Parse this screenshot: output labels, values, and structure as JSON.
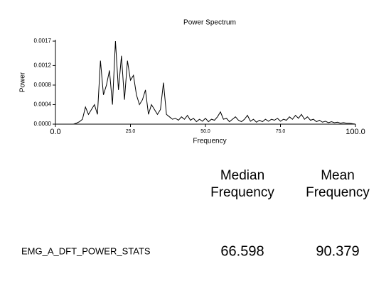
{
  "chart_data": {
    "type": "line",
    "title": "Power Spectrum",
    "xlabel": "Frequency",
    "ylabel": "Power",
    "x": [
      0,
      1,
      2,
      3,
      4,
      5,
      6,
      7,
      8,
      9,
      10,
      11,
      12,
      13,
      14,
      15,
      16,
      17,
      18,
      19,
      20,
      21,
      22,
      23,
      24,
      25,
      26,
      27,
      28,
      29,
      30,
      31,
      32,
      33,
      34,
      35,
      36,
      37,
      38,
      39,
      40,
      41,
      42,
      43,
      44,
      45,
      46,
      47,
      48,
      49,
      50,
      51,
      52,
      53,
      54,
      55,
      56,
      57,
      58,
      59,
      60,
      61,
      62,
      63,
      64,
      65,
      66,
      67,
      68,
      69,
      70,
      71,
      72,
      73,
      74,
      75,
      76,
      77,
      78,
      79,
      80,
      81,
      82,
      83,
      84,
      85,
      86,
      87,
      88,
      89,
      90,
      91,
      92,
      93,
      94,
      95,
      96,
      97,
      98,
      99,
      100
    ],
    "series": [
      {
        "color": "#000000",
        "values": [
          0,
          0,
          0,
          0,
          0,
          0,
          0,
          2e-05,
          5e-05,
          0.0001,
          0.00035,
          0.0002,
          0.0003,
          0.0004,
          0.0002,
          0.0013,
          0.0006,
          0.0008,
          0.0011,
          0.0004,
          0.0017,
          0.0007,
          0.0014,
          0.0005,
          0.0013,
          0.0009,
          0.001,
          0.0006,
          0.0004,
          0.0005,
          0.0007,
          0.0002,
          0.0004,
          0.0003,
          0.0002,
          0.0003,
          0.00085,
          0.0002,
          0.00015,
          0.0001,
          0.00012,
          8e-05,
          0.00015,
          0.0001,
          0.00018,
          8e-05,
          0.00012,
          5e-05,
          0.0001,
          6e-05,
          0.00012,
          5e-05,
          0.0001,
          8e-05,
          0.00015,
          0.00025,
          0.0001,
          0.00012,
          5e-05,
          0.0001,
          0.00015,
          8e-05,
          5e-05,
          0.0001,
          0.00018,
          6e-05,
          0.0001,
          4e-05,
          8e-05,
          5e-05,
          0.0001,
          6e-05,
          0.0001,
          8e-05,
          0.00012,
          6e-05,
          0.0001,
          8e-05,
          0.00015,
          0.0001,
          0.00018,
          0.00012,
          0.0002,
          0.0001,
          0.00015,
          8e-05,
          0.0001,
          5e-05,
          8e-05,
          4e-05,
          6e-05,
          3e-05,
          5e-05,
          3e-05,
          4e-05,
          2e-05,
          3e-05,
          2e-05,
          2e-05,
          1e-05,
          0
        ]
      }
    ],
    "xlim": [
      0,
      100
    ],
    "xticks": [
      {
        "value": 0,
        "label": "0.0"
      },
      {
        "value": 25,
        "label": "25.0"
      },
      {
        "value": 50,
        "label": "50.0"
      },
      {
        "value": 75,
        "label": "75.0"
      },
      {
        "value": 100,
        "label": "100.0"
      }
    ],
    "ylim": [
      0,
      0.0017
    ],
    "yticks": [
      {
        "value": 0,
        "label": "0.0000"
      },
      {
        "value": 0.0004,
        "label": "0.0004"
      },
      {
        "value": 0.0008,
        "label": "0.0008"
      },
      {
        "value": 0.0012,
        "label": "0.0012"
      },
      {
        "value": 0.0017,
        "label": "0.0017"
      }
    ],
    "grid": false
  },
  "table": {
    "headers": [
      [
        "Median",
        "Frequency"
      ],
      [
        "Mean",
        "Frequency"
      ]
    ],
    "rows": [
      [
        "EMG_A_DFT_POWER_STATS",
        "66.598",
        "90.379"
      ]
    ]
  }
}
